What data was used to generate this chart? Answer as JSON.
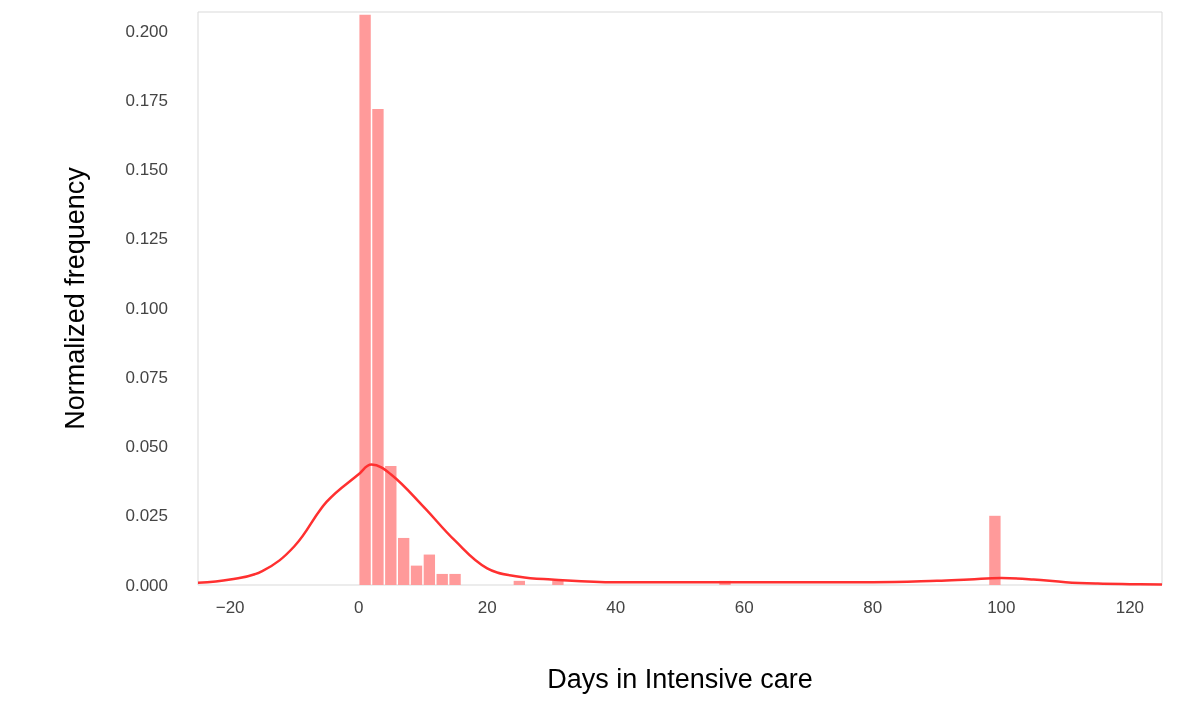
{
  "chart_data": {
    "type": "histogram",
    "xlabel": "Days in Intensive care",
    "ylabel": "Normalized frequency",
    "color": "#ff9a9a",
    "bins": [
      0,
      2,
      4,
      6,
      8,
      10,
      12,
      14,
      16,
      18,
      20,
      22,
      24,
      26,
      28,
      30,
      32,
      34,
      36,
      38,
      40,
      42,
      44,
      46,
      48,
      50,
      52,
      54,
      56,
      58,
      60,
      62,
      64,
      66,
      68,
      70,
      72,
      74,
      76,
      78,
      80,
      82,
      84,
      86,
      88,
      90,
      92,
      94,
      96,
      98,
      100
    ],
    "values": [
      0.206,
      0.172,
      0.043,
      0.017,
      0.007,
      0.011,
      0.004,
      0.004,
      0,
      0,
      0,
      0,
      0.0015,
      0,
      0,
      0.0015,
      0,
      0,
      0,
      0,
      0,
      0,
      0,
      0,
      0,
      0,
      0,
      0,
      0.0015,
      0,
      0,
      0,
      0,
      0,
      0,
      0,
      0,
      0,
      0,
      0,
      0,
      0,
      0,
      0,
      0,
      0,
      0,
      0,
      0,
      0.025
    ],
    "series": [
      {
        "type": "line",
        "color": "#ff3030",
        "x": [
          -25,
          -20,
          -15,
          -10,
          -5,
          0,
          2,
          5,
          10,
          15,
          20,
          25,
          30,
          40,
          50,
          60,
          70,
          80,
          90,
          95,
          100,
          105,
          110,
          115,
          120,
          125
        ],
        "values": [
          0.0008,
          0.002,
          0.005,
          0.014,
          0.03,
          0.04,
          0.0435,
          0.04,
          0.0285,
          0.016,
          0.006,
          0.003,
          0.002,
          0.001,
          0.001,
          0.001,
          0.001,
          0.001,
          0.0015,
          0.002,
          0.0025,
          0.002,
          0.001,
          0.0005,
          0.0003,
          0.0002
        ]
      }
    ],
    "xlim": [
      -25,
      125
    ],
    "xticks": [
      {
        "value": -20,
        "label": "−20"
      },
      0,
      20,
      40,
      60,
      80,
      100,
      120
    ],
    "ylim": [
      0,
      0.207
    ],
    "yticks": [
      {
        "value": 0,
        "label": "0.000"
      },
      {
        "value": 0.025,
        "label": "0.025"
      },
      {
        "value": 0.05,
        "label": "0.050"
      },
      {
        "value": 0.075,
        "label": "0.075"
      },
      {
        "value": 0.1,
        "label": "0.100"
      },
      {
        "value": 0.125,
        "label": "0.125"
      },
      {
        "value": 0.15,
        "label": "0.150"
      },
      {
        "value": 0.175,
        "label": "0.175"
      },
      {
        "value": 0.2,
        "label": "0.200"
      }
    ],
    "grid": false
  }
}
